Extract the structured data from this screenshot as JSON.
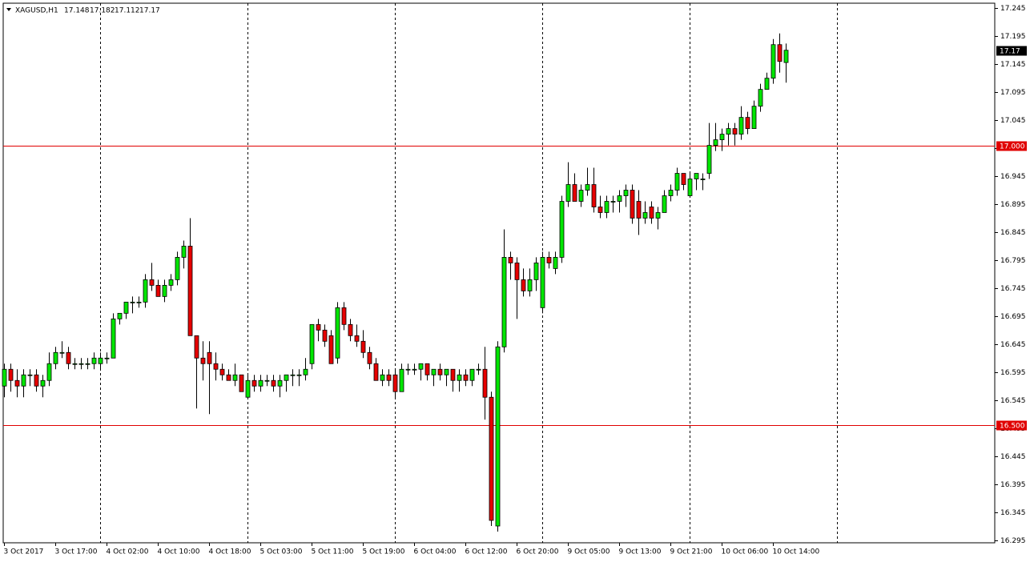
{
  "chart_data": {
    "type": "candlestick",
    "title": "XAGUSD,H1",
    "categories": [
      "3 Oct 2017",
      null,
      null,
      null,
      null,
      null,
      null,
      null,
      "3 Oct 17:00",
      null,
      null,
      null,
      null,
      null,
      null,
      null,
      "4 Oct 02:00",
      null,
      null,
      null,
      null,
      null,
      null,
      null,
      "4 Oct 10:00",
      null,
      null,
      null,
      null,
      null,
      null,
      null,
      "4 Oct 18:00",
      null,
      null,
      null,
      null,
      null,
      null,
      null,
      "5 Oct 03:00",
      null,
      null,
      null,
      null,
      null,
      null,
      null,
      "5 Oct 11:00",
      null,
      null,
      null,
      null,
      null,
      null,
      null,
      "5 Oct 19:00",
      null,
      null,
      null,
      null,
      null,
      null,
      null,
      "6 Oct 04:00",
      null,
      null,
      null,
      null,
      null,
      null,
      null,
      "6 Oct 12:00",
      null,
      null,
      null,
      null,
      null,
      null,
      null,
      "6 Oct 20:00",
      null,
      null,
      null,
      null,
      null,
      null,
      null,
      "9 Oct 05:00",
      null,
      null,
      null,
      null,
      null,
      null,
      null,
      "9 Oct 13:00",
      null,
      null,
      null,
      null,
      null,
      null,
      null,
      "9 Oct 21:00",
      null,
      null,
      null,
      null,
      null,
      null,
      null,
      "10 Oct 06:00",
      null,
      null,
      null,
      null,
      null,
      null,
      null,
      "10 Oct 14:00",
      null,
      null
    ],
    "open": [
      16.57,
      16.6,
      16.58,
      16.57,
      16.59,
      16.59,
      16.57,
      16.58,
      16.61,
      16.63,
      16.63,
      16.61,
      16.61,
      16.61,
      16.61,
      16.61,
      16.62,
      16.62,
      16.69,
      16.7,
      16.72,
      16.72,
      16.72,
      16.76,
      16.75,
      16.73,
      16.75,
      16.76,
      16.8,
      16.82,
      16.66,
      16.62,
      16.63,
      16.61,
      16.6,
      16.59,
      16.58,
      16.59,
      16.55,
      16.58,
      16.57,
      16.58,
      16.58,
      16.57,
      16.58,
      16.59,
      16.59,
      16.59,
      16.61,
      16.68,
      16.67,
      16.66,
      16.62,
      16.71,
      16.68,
      16.66,
      16.65,
      16.63,
      16.61,
      16.58,
      16.59,
      16.59,
      16.56,
      16.6,
      16.6,
      16.6,
      16.61,
      16.59,
      16.6,
      16.59,
      16.6,
      16.58,
      16.59,
      16.58,
      16.6,
      16.6,
      16.55,
      16.32,
      16.64,
      16.8,
      16.79,
      16.76,
      16.74,
      16.76,
      16.71,
      16.8,
      16.78,
      16.8,
      16.9,
      16.93,
      16.9,
      16.92,
      16.93,
      16.89,
      16.88,
      16.9,
      16.9,
      16.91,
      16.92,
      16.9,
      16.87,
      16.89,
      16.87,
      16.88,
      16.91,
      16.92,
      16.95,
      16.91,
      16.94,
      16.94,
      16.95,
      17.0,
      17.01,
      17.02,
      17.03,
      17.02,
      17.05,
      17.03,
      17.07,
      17.1,
      17.12,
      17.18,
      17.148
    ],
    "high": [
      16.61,
      16.61,
      16.6,
      16.6,
      16.6,
      16.6,
      16.59,
      16.63,
      16.64,
      16.65,
      16.64,
      16.62,
      16.62,
      16.62,
      16.63,
      16.63,
      16.63,
      16.7,
      16.7,
      16.72,
      16.73,
      16.73,
      16.77,
      16.79,
      16.76,
      16.76,
      16.77,
      16.81,
      16.83,
      16.87,
      16.66,
      16.65,
      16.65,
      16.63,
      16.61,
      16.6,
      16.61,
      16.59,
      16.59,
      16.59,
      16.59,
      16.59,
      16.59,
      16.59,
      16.59,
      16.6,
      16.6,
      16.62,
      16.68,
      16.69,
      16.68,
      16.67,
      16.72,
      16.72,
      16.69,
      16.68,
      16.67,
      16.64,
      16.62,
      16.6,
      16.6,
      16.6,
      16.61,
      16.61,
      16.61,
      16.61,
      16.61,
      16.6,
      16.61,
      16.6,
      16.6,
      16.6,
      16.6,
      16.6,
      16.61,
      16.64,
      16.56,
      16.65,
      16.85,
      16.81,
      16.8,
      16.78,
      16.78,
      16.8,
      16.81,
      16.81,
      16.81,
      16.91,
      16.97,
      16.95,
      16.93,
      16.96,
      16.96,
      16.91,
      16.91,
      16.91,
      16.92,
      16.93,
      16.93,
      16.92,
      16.9,
      16.9,
      16.89,
      16.92,
      16.93,
      16.96,
      16.95,
      16.95,
      16.95,
      16.95,
      17.04,
      17.04,
      17.03,
      17.04,
      17.04,
      17.07,
      17.06,
      17.08,
      17.11,
      17.13,
      17.19,
      17.2,
      17.182
    ],
    "low": [
      16.55,
      16.56,
      16.55,
      16.55,
      16.57,
      16.56,
      16.55,
      16.57,
      16.6,
      16.62,
      16.6,
      16.6,
      16.6,
      16.6,
      16.6,
      16.6,
      16.61,
      16.62,
      16.68,
      16.69,
      16.7,
      16.71,
      16.71,
      16.74,
      16.73,
      16.72,
      16.74,
      16.75,
      16.78,
      16.66,
      16.53,
      16.58,
      16.52,
      16.58,
      16.58,
      16.58,
      16.57,
      16.56,
      16.55,
      16.56,
      16.56,
      16.57,
      16.56,
      16.55,
      16.56,
      16.57,
      16.57,
      16.58,
      16.6,
      16.65,
      16.64,
      16.61,
      16.61,
      16.67,
      16.65,
      16.64,
      16.62,
      16.6,
      16.58,
      16.57,
      16.57,
      16.55,
      16.56,
      16.59,
      16.59,
      16.58,
      16.58,
      16.57,
      16.58,
      16.57,
      16.56,
      16.56,
      16.57,
      16.57,
      16.59,
      16.51,
      16.32,
      16.31,
      16.63,
      16.76,
      16.69,
      16.73,
      16.73,
      16.74,
      16.7,
      16.78,
      16.77,
      16.79,
      16.89,
      16.9,
      16.89,
      16.91,
      16.88,
      16.87,
      16.87,
      16.88,
      16.88,
      16.89,
      16.86,
      16.84,
      16.86,
      16.86,
      16.85,
      16.88,
      16.9,
      16.91,
      16.92,
      16.91,
      16.92,
      16.92,
      16.94,
      16.99,
      16.99,
      17.0,
      17.0,
      17.01,
      17.02,
      17.03,
      17.06,
      17.1,
      17.11,
      17.13,
      17.112
    ],
    "close": [
      16.6,
      16.58,
      16.57,
      16.59,
      16.59,
      16.57,
      16.58,
      16.61,
      16.63,
      16.63,
      16.61,
      16.61,
      16.61,
      16.61,
      16.62,
      16.62,
      16.62,
      16.69,
      16.7,
      16.72,
      16.72,
      16.72,
      16.76,
      16.75,
      16.73,
      16.75,
      16.76,
      16.8,
      16.82,
      16.66,
      16.62,
      16.61,
      16.61,
      16.6,
      16.59,
      16.58,
      16.59,
      16.56,
      16.58,
      16.57,
      16.58,
      16.58,
      16.57,
      16.58,
      16.59,
      16.59,
      16.59,
      16.6,
      16.68,
      16.67,
      16.65,
      16.61,
      16.71,
      16.68,
      16.66,
      16.65,
      16.63,
      16.61,
      16.58,
      16.59,
      16.58,
      16.56,
      16.6,
      16.6,
      16.6,
      16.61,
      16.59,
      16.6,
      16.59,
      16.6,
      16.58,
      16.59,
      16.58,
      16.6,
      16.6,
      16.55,
      16.33,
      16.64,
      16.8,
      16.79,
      16.76,
      16.74,
      16.76,
      16.79,
      16.8,
      16.79,
      16.8,
      16.9,
      16.93,
      16.9,
      16.92,
      16.93,
      16.89,
      16.88,
      16.9,
      16.9,
      16.91,
      16.92,
      16.87,
      16.87,
      16.88,
      16.87,
      16.88,
      16.91,
      16.92,
      16.95,
      16.93,
      16.94,
      16.95,
      16.94,
      17.0,
      17.01,
      17.02,
      17.03,
      17.02,
      17.05,
      17.03,
      17.07,
      17.1,
      17.12,
      17.18,
      17.15,
      17.17
    ],
    "up_color": "#00e600",
    "down_color": "#e60000",
    "ylim": [
      16.29,
      17.254
    ],
    "yticks": [
      17.245,
      17.195,
      17.145,
      17.095,
      17.045,
      16.995,
      16.945,
      16.895,
      16.845,
      16.795,
      16.745,
      16.695,
      16.645,
      16.595,
      16.545,
      16.495,
      16.445,
      16.395,
      16.345,
      16.295
    ],
    "hlines": [
      {
        "value": 17,
        "label": "17.000"
      },
      {
        "value": 16.5,
        "label": "16.500"
      }
    ],
    "hline_color": "#e00000"
  }
}
